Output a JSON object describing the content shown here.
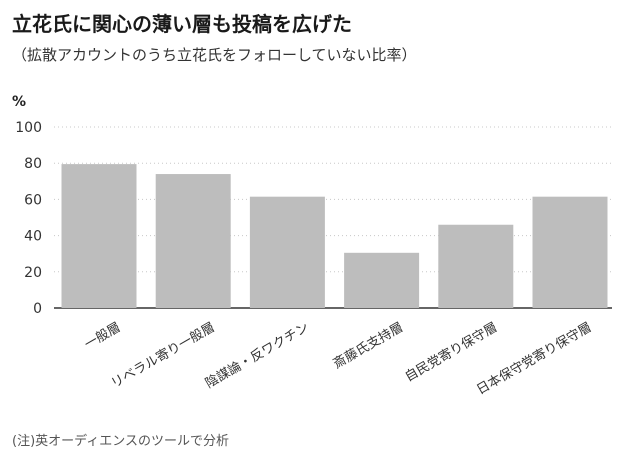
{
  "header": {
    "title": "立花氏に関心の薄い層も投稿を広げた",
    "subtitle": "（拡散アカウントのうち立花氏をフォローしていない比率）"
  },
  "footer": {
    "note": "(注)英オーディエンスのツールで分析"
  },
  "colors": {
    "bar": "#bdbdbd",
    "gridline": "#c8c8c8",
    "axis": "#333333"
  },
  "chart_data": {
    "type": "bar",
    "title": "立花氏に関心の薄い層も投稿を広げた",
    "subtitle": "（拡散アカウントのうち立花氏をフォローしていない比率）",
    "unit": "%",
    "xlabel": "",
    "ylabel": "%",
    "ylim": [
      0,
      100
    ],
    "yticks": [
      0,
      20,
      40,
      60,
      80,
      100
    ],
    "grid": true,
    "categories": [
      "一般層",
      "リベラル寄り一般層",
      "陰謀論・反ワクチン",
      "斎藤氏支持層",
      "自民党寄り保守層",
      "日本保守党寄り保守層"
    ],
    "values": [
      79.5,
      74,
      61.5,
      30.5,
      46,
      61.5
    ]
  }
}
